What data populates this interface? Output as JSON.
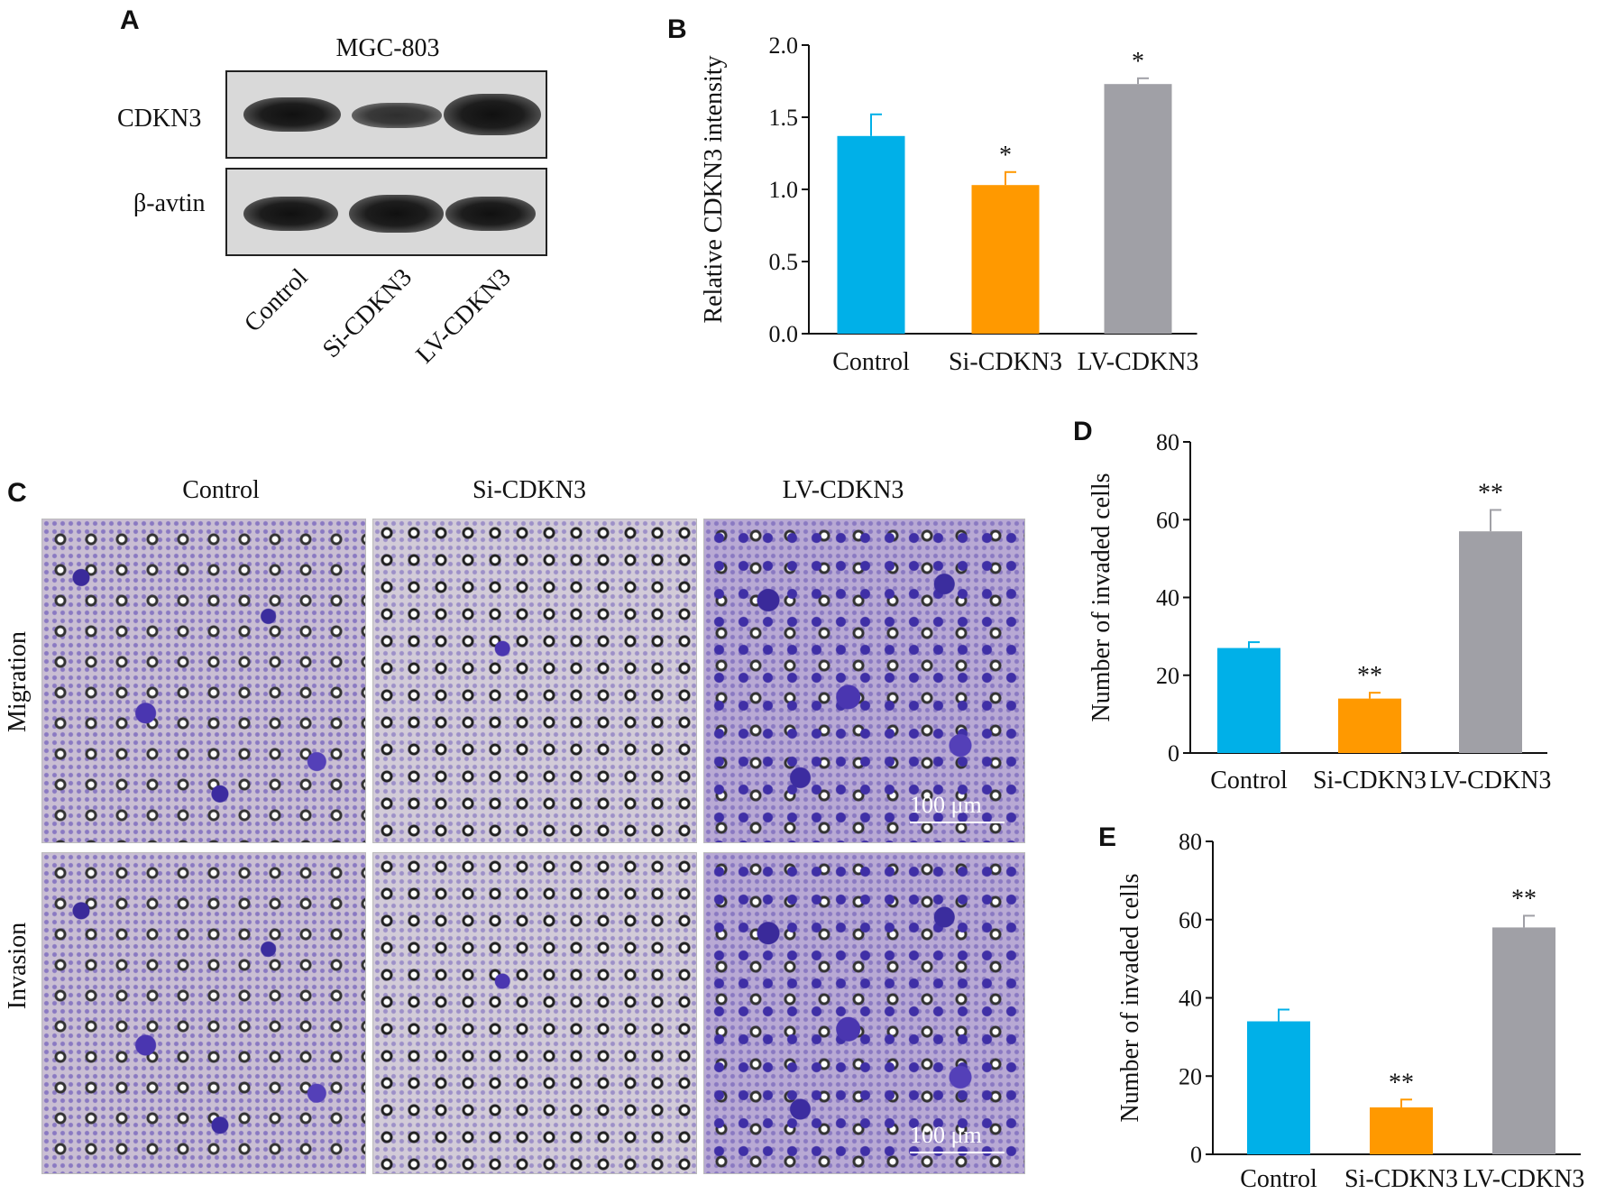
{
  "panels": {
    "A": {
      "letter": "A",
      "title": "MGC-803",
      "rows": [
        "CDKN3",
        "β-avtin"
      ],
      "lanes": [
        "Control",
        "Si-CDKN3",
        "LV-CDKN3"
      ]
    },
    "B": {
      "letter": "B"
    },
    "C": {
      "letter": "C",
      "columns": [
        "Control",
        "Si-CDKN3",
        "LV-CDKN3"
      ],
      "rows": [
        "Migration",
        "Invasion"
      ],
      "scale_bar": "100 μm"
    },
    "D": {
      "letter": "D"
    },
    "E": {
      "letter": "E"
    }
  },
  "colors": {
    "control": "#00b0e8",
    "si": "#ff9900",
    "lv": "#a0a0a6"
  },
  "chart_data": [
    {
      "id": "B",
      "type": "bar",
      "categories": [
        "Control",
        "Si-CDKN3",
        "LV-CDKN3"
      ],
      "values": [
        1.37,
        1.03,
        1.73
      ],
      "errors": [
        0.15,
        0.09,
        0.04
      ],
      "annotations": [
        "",
        "*",
        "*"
      ],
      "ylabel": "Relative CDKN3 intensity",
      "ylim": [
        0,
        2.0
      ],
      "yticks": [
        "0.0",
        "0.5",
        "1.0",
        "1.5",
        "2.0"
      ],
      "grid": false
    },
    {
      "id": "D",
      "type": "bar",
      "categories": [
        "Control",
        "Si-CDKN3",
        "LV-CDKN3"
      ],
      "values": [
        27,
        14,
        57
      ],
      "errors": [
        1.5,
        1.5,
        5.5
      ],
      "annotations": [
        "",
        "**",
        "**"
      ],
      "ylabel": "Number of invaded cells",
      "ylim": [
        0,
        80
      ],
      "yticks": [
        "0",
        "20",
        "40",
        "60",
        "80"
      ],
      "grid": false
    },
    {
      "id": "E",
      "type": "bar",
      "categories": [
        "Control",
        "Si-CDKN3",
        "LV-CDKN3"
      ],
      "values": [
        34,
        12,
        58
      ],
      "errors": [
        3,
        2,
        3
      ],
      "annotations": [
        "",
        "**",
        "**"
      ],
      "ylabel": "Number of invaded cells",
      "ylim": [
        0,
        80
      ],
      "yticks": [
        "0",
        "20",
        "40",
        "60",
        "80"
      ],
      "grid": false
    }
  ]
}
